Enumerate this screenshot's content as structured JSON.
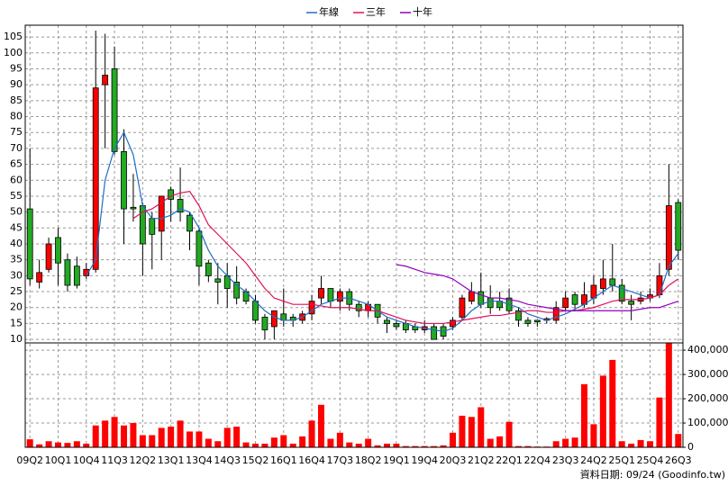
{
  "chart_data": [
    {
      "type": "candlestick",
      "legend": "top",
      "up_color": "#ff0000",
      "down_color": "#22aa22",
      "categories": [
        "09Q2",
        null,
        null,
        "10Q1",
        null,
        null,
        "10Q4",
        null,
        null,
        "11Q3",
        null,
        null,
        "12Q2",
        null,
        null,
        "13Q1",
        null,
        null,
        "13Q4",
        null,
        null,
        "14Q3",
        null,
        null,
        "15Q2",
        null,
        null,
        "16Q1",
        null,
        null,
        "16Q4",
        null,
        null,
        "17Q3",
        null,
        null,
        "18Q2",
        null,
        null,
        "19Q1",
        null,
        null,
        "19Q4",
        null,
        null,
        "20Q3",
        null,
        null,
        "21Q2",
        null,
        null,
        "22Q1",
        null,
        null,
        "22Q4",
        null,
        null,
        "23Q3",
        null,
        null,
        "24Q2",
        null,
        null,
        "25Q1",
        null,
        null,
        "25Q4",
        null,
        null,
        "26Q3"
      ],
      "open": [
        51,
        28,
        32,
        42,
        35,
        33,
        30,
        32,
        90,
        95,
        69,
        51.5,
        52,
        48,
        44,
        57,
        54,
        49,
        44,
        34,
        29,
        30,
        28,
        25,
        22,
        17,
        14,
        18,
        17,
        16,
        18,
        23,
        26,
        22,
        25,
        21,
        19,
        21,
        16,
        15,
        15,
        14,
        13,
        14,
        14,
        14,
        17,
        22,
        25,
        23,
        22,
        23,
        19,
        16,
        16,
        16,
        16,
        20,
        24,
        21,
        23,
        26,
        29,
        27,
        22,
        22,
        23,
        24,
        32,
        53
      ],
      "high": [
        70,
        35,
        42,
        45,
        37,
        36,
        34,
        107,
        106,
        102,
        76,
        62,
        53,
        50,
        55,
        58,
        64,
        50,
        45,
        35,
        34,
        34,
        33,
        26,
        24,
        18,
        19,
        26,
        18,
        19,
        24,
        30,
        26,
        26,
        26,
        22,
        22,
        21,
        17,
        16,
        16,
        15,
        16,
        15,
        15,
        17,
        24,
        28,
        31,
        27,
        25,
        26,
        20,
        17,
        16,
        17,
        22,
        25,
        25,
        28,
        30,
        35,
        40,
        29,
        24,
        25,
        26,
        34,
        65,
        54
      ],
      "low": [
        27,
        26,
        31,
        27,
        25,
        26,
        29,
        31,
        70,
        68,
        40,
        47,
        30,
        32,
        35,
        47,
        47,
        38,
        27,
        28,
        21,
        20,
        21,
        21,
        15,
        10,
        10,
        14,
        14,
        15,
        16,
        21,
        20,
        19,
        19,
        17,
        17,
        15,
        12,
        13,
        12,
        12,
        12,
        10,
        10,
        13,
        16,
        21,
        20,
        18,
        19,
        18,
        14,
        14,
        14,
        15,
        15,
        19,
        19,
        20,
        21,
        24,
        25,
        21,
        16,
        21,
        22,
        23,
        30,
        35
      ],
      "close": [
        29,
        31,
        40,
        34,
        27,
        27,
        32,
        89,
        93,
        69,
        51,
        51,
        40,
        43,
        55,
        54,
        50,
        44,
        33,
        30,
        28,
        26,
        23,
        22,
        16,
        13,
        19,
        16,
        16,
        18,
        22,
        26,
        22,
        25,
        21,
        19,
        21,
        17,
        15,
        14,
        13,
        13,
        14,
        10,
        11,
        16,
        23,
        25,
        21,
        20,
        20,
        19,
        16,
        15,
        15.5,
        16.5,
        20,
        23,
        21,
        24,
        27,
        29,
        27,
        22,
        21,
        23,
        24,
        30,
        52,
        38
      ],
      "series": [
        {
          "name": "年線",
          "color": "#1f6fc4",
          "values": [
            null,
            null,
            null,
            null,
            null,
            null,
            30,
            35,
            60,
            70,
            75,
            68,
            52,
            48,
            48,
            49,
            51,
            50,
            45,
            38,
            33,
            30,
            27,
            25,
            22,
            19,
            17,
            16,
            16,
            17,
            19,
            21,
            22,
            23,
            23,
            22,
            21,
            19,
            17,
            16,
            15,
            14,
            13.5,
            13,
            12.5,
            13.5,
            16,
            19,
            21,
            22,
            22,
            21,
            20,
            18,
            17,
            16,
            17,
            18,
            19.5,
            21,
            23,
            25,
            27,
            26,
            25,
            24,
            23,
            24,
            33,
            37
          ]
        },
        {
          "name": "三年",
          "color": "#e0105a",
          "values": [
            null,
            null,
            null,
            null,
            null,
            null,
            null,
            null,
            null,
            null,
            null,
            48,
            50,
            51,
            53,
            55,
            56,
            56.5,
            52,
            46,
            43,
            40,
            37,
            34,
            30,
            26,
            23,
            22,
            21,
            21,
            21,
            20.5,
            20,
            20,
            20,
            19.5,
            19,
            19,
            18,
            17,
            16,
            15.5,
            15,
            15,
            15,
            15.5,
            16,
            16.5,
            17,
            17.5,
            17.5,
            18,
            18.5,
            19,
            19,
            18.5,
            18.5,
            19,
            19,
            19.5,
            20,
            21,
            22,
            22.5,
            22.5,
            22.5,
            23,
            24,
            27,
            29
          ]
        },
        {
          "name": "十年",
          "color": "#9000c0",
          "values": [
            null,
            null,
            null,
            null,
            null,
            null,
            null,
            null,
            null,
            null,
            null,
            null,
            null,
            null,
            null,
            null,
            null,
            null,
            null,
            null,
            null,
            null,
            null,
            null,
            null,
            null,
            null,
            null,
            null,
            null,
            null,
            null,
            null,
            null,
            null,
            null,
            null,
            null,
            null,
            33.5,
            33,
            32,
            31,
            30.5,
            30,
            29,
            27,
            25,
            24,
            23,
            23,
            22.5,
            22,
            21,
            20.5,
            20,
            19.5,
            19,
            19,
            19,
            19,
            19,
            19,
            19,
            19,
            19.5,
            20,
            20,
            21,
            22
          ]
        }
      ],
      "ylim": [
        8.9,
        108.7
      ],
      "yticks": [
        10,
        15,
        20,
        25,
        30,
        35,
        40,
        45,
        50,
        55,
        60,
        65,
        70,
        75,
        80,
        85,
        90,
        95,
        100,
        105
      ],
      "grid": true
    },
    {
      "type": "bar",
      "color": "#ff0000",
      "values": [
        33000,
        12000,
        25000,
        20000,
        18000,
        25000,
        15000,
        90000,
        110000,
        125000,
        90000,
        100000,
        50000,
        50000,
        80000,
        85000,
        110000,
        65000,
        65000,
        35000,
        25000,
        80000,
        85000,
        20000,
        15000,
        15000,
        40000,
        50000,
        15000,
        45000,
        110000,
        175000,
        35000,
        60000,
        20000,
        15000,
        35000,
        8000,
        15000,
        15000,
        5000,
        5000,
        5000,
        5000,
        8000,
        60000,
        130000,
        125000,
        165000,
        35000,
        45000,
        105000,
        5000,
        5000,
        3000,
        3000,
        25000,
        35000,
        40000,
        260000,
        95000,
        295000,
        360000,
        25000,
        15000,
        30000,
        25000,
        205000,
        430000,
        55000
      ],
      "ylim": [
        0,
        430000
      ],
      "yticks": [
        0,
        {
          "value": 100000,
          "label": "100,000"
        },
        {
          "value": 200000,
          "label": "200,000"
        },
        {
          "value": 300000,
          "label": "300,000"
        },
        {
          "value": 400000,
          "label": "400,000"
        }
      ],
      "grid": true,
      "note": "資料日期: 09/24 (Goodinfo.tw)"
    }
  ]
}
